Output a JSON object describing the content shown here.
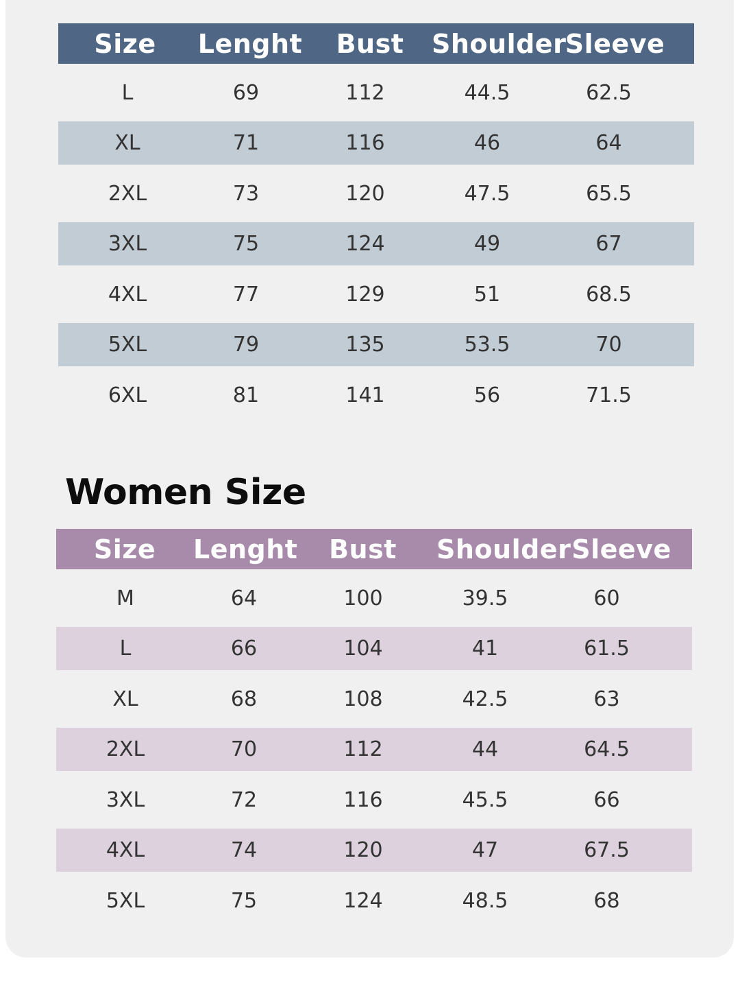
{
  "men_table": {
    "headers": [
      "Size",
      "Lenght",
      "Bust",
      "Shoulder",
      "Sleeve"
    ],
    "rows": [
      [
        "L",
        "69",
        "112",
        "44.5",
        "62.5"
      ],
      [
        "XL",
        "71",
        "116",
        "46",
        "64"
      ],
      [
        "2XL",
        "73",
        "120",
        "47.5",
        "65.5"
      ],
      [
        "3XL",
        "75",
        "124",
        "49",
        "67"
      ],
      [
        "4XL",
        "77",
        "129",
        "51",
        "68.5"
      ],
      [
        "5XL",
        "79",
        "135",
        "53.5",
        "70"
      ],
      [
        "6XL",
        "81",
        "141",
        "56",
        "71.5"
      ]
    ]
  },
  "women_section": {
    "title": "Women Size"
  },
  "women_table": {
    "headers": [
      "Size",
      "Lenght",
      "Bust",
      "Shoulder",
      "Sleeve"
    ],
    "rows": [
      [
        "M",
        "64",
        "100",
        "39.5",
        "60"
      ],
      [
        "L",
        "66",
        "104",
        "41",
        "61.5"
      ],
      [
        "XL",
        "68",
        "108",
        "42.5",
        "63"
      ],
      [
        "2XL",
        "70",
        "112",
        "44",
        "64.5"
      ],
      [
        "3XL",
        "72",
        "116",
        "45.5",
        "66"
      ],
      [
        "4XL",
        "74",
        "120",
        "47",
        "67.5"
      ],
      [
        "5XL",
        "75",
        "124",
        "48.5",
        "68"
      ]
    ]
  },
  "colors": {
    "men_header": "#4f6685",
    "men_shade": "#c2ccd4",
    "women_header": "#a88aab",
    "women_shade": "#dcd1dd",
    "background": "#eff0ef"
  }
}
